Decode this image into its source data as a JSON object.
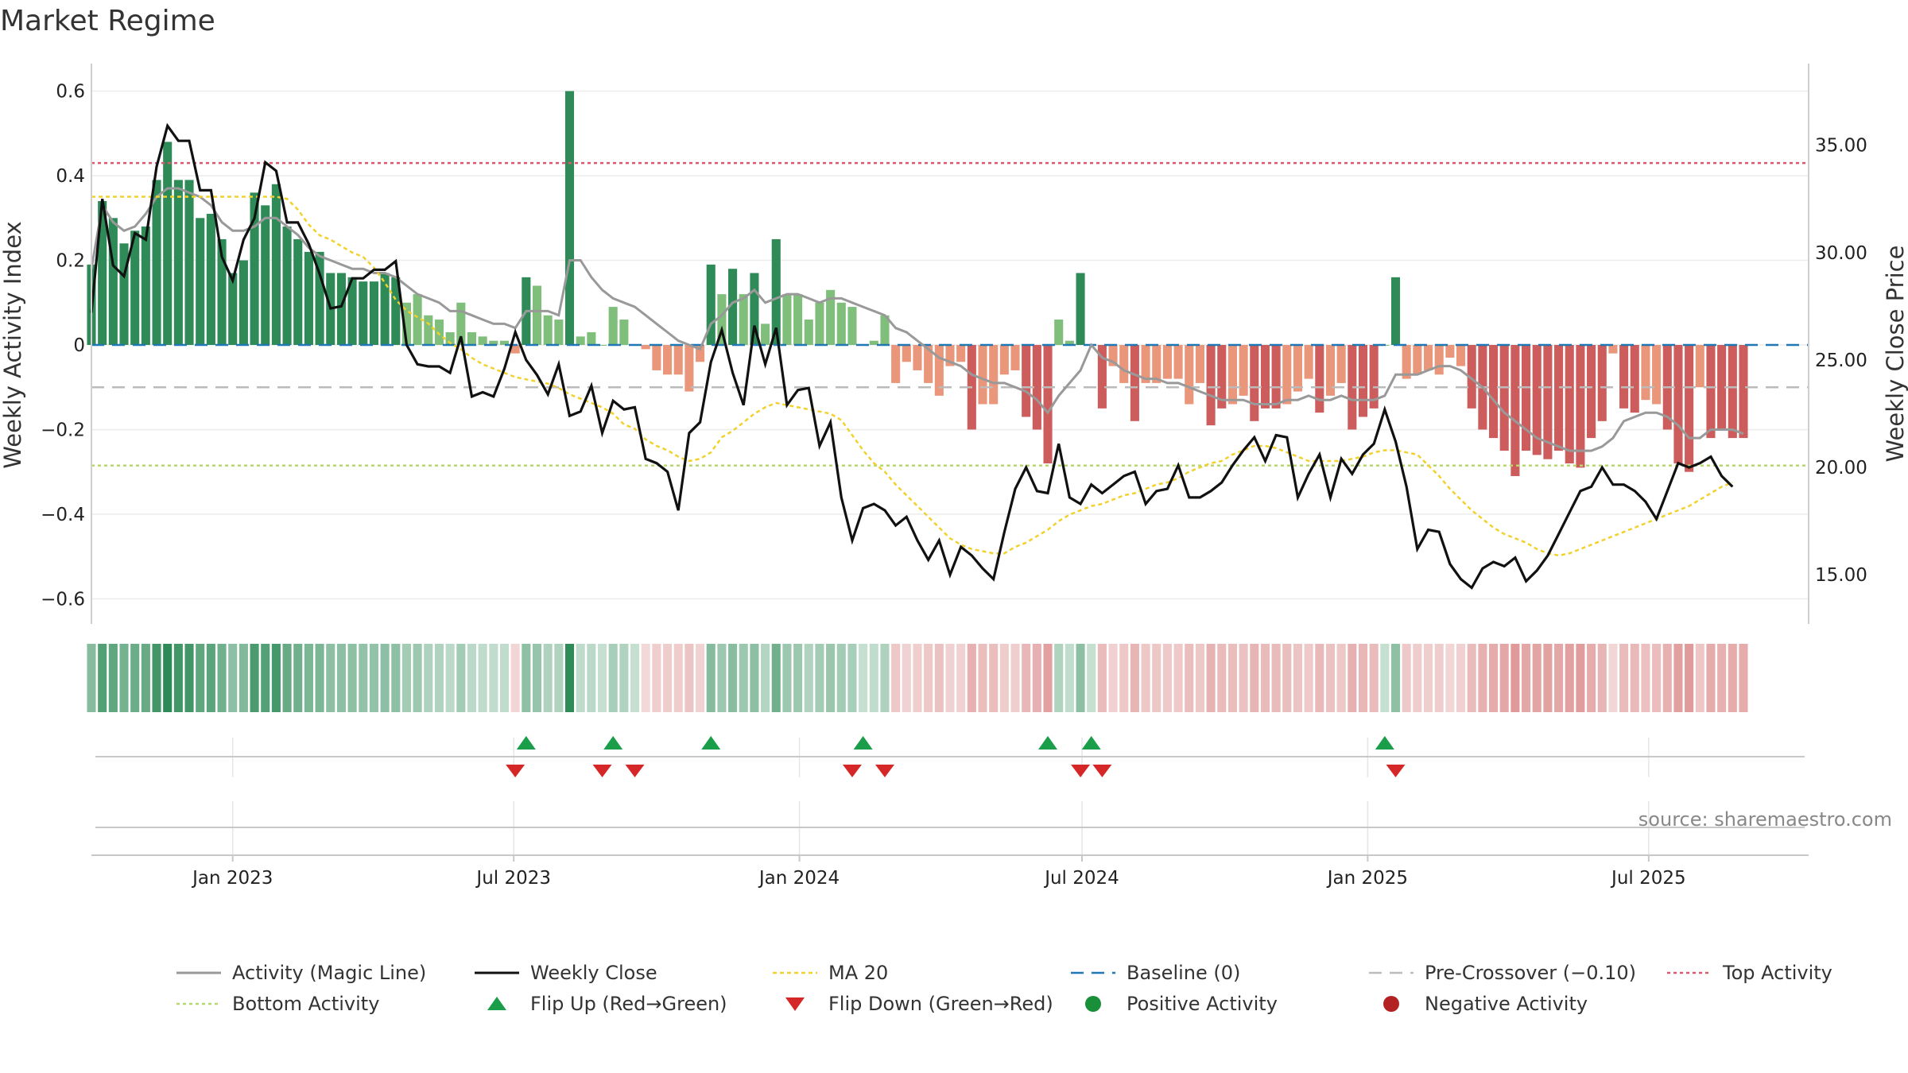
{
  "title": "Market Regime",
  "source": "source: sharemaestro.com",
  "colors": {
    "strong_green": "#2e8b57",
    "light_green": "#7fbf7b",
    "strong_red": "#cd5c5c",
    "light_red": "#e9967a",
    "magic_line": "#999999",
    "close": "#111111",
    "ma20": "#f2d12e",
    "baseline": "#1f77b4",
    "pre_crossover": "#bbbbbb",
    "top_activity": "#e0566f",
    "bottom_activity": "#b5d96b",
    "flip_up": "#1a9e4a",
    "flip_down": "#d62728",
    "positive": "#1a8f3a",
    "negative": "#b22222"
  },
  "chart_data": {
    "type": "bar",
    "title": "Market Regime",
    "x_start": "2022-10-02",
    "x_step_days": 7,
    "x_end": "2025-10-12",
    "ylabel": "Weekly Activity Index",
    "y2label": "Weekly Close Price",
    "ylim": [
      -0.65,
      0.65
    ],
    "y2lim": [
      12.9,
      38.5
    ],
    "yticks": [
      0.6,
      0.4,
      0.2,
      0,
      -0.2,
      -0.4,
      -0.6
    ],
    "ytick_labels": [
      "0.6",
      "0.4",
      "0.2",
      "0",
      "−0.2",
      "−0.4",
      "−0.6"
    ],
    "y2ticks": [
      35,
      30,
      25,
      20,
      15
    ],
    "y2tick_labels": [
      "35.00",
      "30.00",
      "25.00",
      "20.00",
      "15.00"
    ],
    "xtick_dates": [
      "2023-01-01",
      "2023-07-01",
      "2024-01-01",
      "2024-07-01",
      "2025-01-01",
      "2025-07-01"
    ],
    "xtick_labels": [
      "Jan 2023",
      "Jul 2023",
      "Jan 2024",
      "Jul 2024",
      "Jan 2025",
      "Jul 2025"
    ],
    "reference_lines": {
      "baseline": 0,
      "pre_crossover": -0.1,
      "top_activity": 0.43,
      "bottom_activity": -0.285
    },
    "series": [
      {
        "name": "Activity",
        "type": "bar",
        "values": [
          0.19,
          0.34,
          0.3,
          0.24,
          0.27,
          0.28,
          0.39,
          0.48,
          0.39,
          0.39,
          0.3,
          0.31,
          0.25,
          0.17,
          0.2,
          0.36,
          0.33,
          0.38,
          0.28,
          0.25,
          0.22,
          0.22,
          0.17,
          0.17,
          0.16,
          0.15,
          0.15,
          0.17,
          0.16,
          0.1,
          0.12,
          0.07,
          0.06,
          0.03,
          0.1,
          0.03,
          0.02,
          0.01,
          0.01,
          -0.02,
          0.16,
          0.14,
          0.07,
          0.06,
          0.6,
          0.02,
          0.03,
          0.0,
          0.09,
          0.06,
          0.0,
          -0.01,
          -0.06,
          -0.07,
          -0.07,
          -0.11,
          -0.04,
          0.19,
          0.12,
          0.18,
          0.12,
          0.17,
          0.05,
          0.25,
          0.12,
          0.12,
          0.06,
          0.1,
          0.13,
          0.1,
          0.09,
          0.0,
          0.01,
          0.07,
          -0.09,
          -0.04,
          -0.06,
          -0.09,
          -0.12,
          -0.05,
          -0.04,
          -0.2,
          -0.14,
          -0.14,
          -0.07,
          -0.06,
          -0.17,
          -0.2,
          -0.28,
          0.06,
          0.01,
          0.17,
          0.0,
          -0.15,
          -0.05,
          -0.09,
          -0.18,
          -0.09,
          -0.09,
          -0.08,
          -0.08,
          -0.14,
          -0.09,
          -0.19,
          -0.15,
          -0.14,
          -0.12,
          -0.18,
          -0.15,
          -0.15,
          -0.14,
          -0.11,
          -0.08,
          -0.16,
          -0.12,
          -0.09,
          -0.2,
          -0.17,
          -0.15,
          0.0,
          0.16,
          -0.08,
          -0.07,
          -0.06,
          -0.07,
          -0.03,
          -0.05,
          -0.15,
          -0.2,
          -0.22,
          -0.25,
          -0.31,
          -0.25,
          -0.26,
          -0.27,
          -0.25,
          -0.28,
          -0.29,
          -0.22,
          -0.18,
          -0.02,
          -0.15,
          -0.16,
          -0.13,
          -0.14,
          -0.2,
          -0.28,
          -0.3,
          -0.1,
          -0.22,
          -0.2,
          -0.22,
          -0.22
        ]
      },
      {
        "name": "Activity (Magic Line)",
        "type": "line",
        "values": [
          0.18,
          0.33,
          0.29,
          0.27,
          0.28,
          0.31,
          0.35,
          0.37,
          0.37,
          0.36,
          0.35,
          0.33,
          0.29,
          0.27,
          0.27,
          0.28,
          0.3,
          0.3,
          0.28,
          0.26,
          0.23,
          0.21,
          0.2,
          0.19,
          0.18,
          0.18,
          0.17,
          0.17,
          0.16,
          0.14,
          0.12,
          0.11,
          0.1,
          0.08,
          0.08,
          0.07,
          0.06,
          0.05,
          0.05,
          0.04,
          0.08,
          0.08,
          0.08,
          0.07,
          0.2,
          0.2,
          0.16,
          0.13,
          0.11,
          0.1,
          0.09,
          0.07,
          0.05,
          0.03,
          0.01,
          0.0,
          -0.01,
          0.05,
          0.07,
          0.1,
          0.11,
          0.13,
          0.1,
          0.11,
          0.12,
          0.12,
          0.11,
          0.1,
          0.11,
          0.11,
          0.1,
          0.09,
          0.08,
          0.07,
          0.04,
          0.03,
          0.01,
          -0.01,
          -0.03,
          -0.04,
          -0.05,
          -0.07,
          -0.08,
          -0.09,
          -0.09,
          -0.1,
          -0.11,
          -0.13,
          -0.16,
          -0.12,
          -0.09,
          -0.06,
          0.0,
          -0.03,
          -0.04,
          -0.06,
          -0.07,
          -0.08,
          -0.08,
          -0.09,
          -0.09,
          -0.1,
          -0.11,
          -0.12,
          -0.13,
          -0.13,
          -0.13,
          -0.14,
          -0.14,
          -0.14,
          -0.13,
          -0.13,
          -0.12,
          -0.13,
          -0.13,
          -0.12,
          -0.13,
          -0.13,
          -0.13,
          -0.12,
          -0.07,
          -0.07,
          -0.07,
          -0.06,
          -0.05,
          -0.05,
          -0.06,
          -0.08,
          -0.1,
          -0.13,
          -0.16,
          -0.18,
          -0.2,
          -0.22,
          -0.23,
          -0.24,
          -0.25,
          -0.25,
          -0.25,
          -0.24,
          -0.22,
          -0.18,
          -0.17,
          -0.16,
          -0.16,
          -0.17,
          -0.19,
          -0.22,
          -0.22,
          -0.2,
          -0.2,
          -0.2,
          -0.21
        ]
      },
      {
        "name": "Weekly Close",
        "type": "line",
        "axis": "y2",
        "values": [
          27.2,
          32.5,
          29.4,
          28.9,
          30.9,
          30.6,
          34.0,
          35.9,
          35.2,
          35.2,
          32.9,
          32.9,
          29.8,
          28.7,
          30.6,
          31.6,
          34.2,
          33.8,
          31.4,
          31.4,
          30.4,
          29.0,
          27.4,
          27.5,
          28.8,
          28.8,
          29.2,
          29.2,
          29.6,
          25.7,
          24.8,
          24.7,
          24.7,
          24.4,
          26.1,
          23.3,
          23.5,
          23.3,
          24.6,
          26.3,
          25.0,
          24.3,
          23.4,
          24.8,
          22.4,
          22.6,
          23.8,
          21.6,
          23.1,
          22.7,
          22.8,
          20.4,
          20.2,
          19.8,
          18.0,
          21.6,
          22.1,
          24.9,
          26.4,
          24.4,
          22.9,
          26.6,
          24.8,
          26.5,
          22.9,
          23.6,
          23.7,
          21.0,
          22.1,
          18.6,
          16.6,
          18.1,
          18.3,
          18.0,
          17.3,
          17.7,
          16.6,
          15.7,
          16.6,
          15.0,
          16.3,
          15.9,
          15.3,
          14.8,
          17.0,
          19.0,
          20.0,
          18.9,
          18.8,
          21.1,
          18.6,
          18.3,
          19.2,
          18.8,
          19.2,
          19.6,
          19.8,
          18.3,
          18.9,
          19.0,
          20.1,
          18.6,
          18.6,
          18.9,
          19.3,
          20.1,
          20.8,
          21.4,
          20.3,
          21.5,
          21.4,
          18.6,
          19.7,
          20.6,
          18.6,
          20.4,
          19.7,
          20.6,
          21.1,
          22.7,
          21.2,
          19.1,
          16.2,
          17.1,
          17.0,
          15.5,
          14.8,
          14.4,
          15.3,
          15.6,
          15.4,
          15.8,
          14.7,
          15.2,
          15.9,
          16.9,
          17.9,
          18.9,
          19.1,
          20.0,
          19.2,
          19.2,
          18.9,
          18.4,
          17.6,
          18.9,
          20.2,
          20.0,
          20.2,
          20.5,
          19.6,
          19.1
        ]
      },
      {
        "name": "MA 20",
        "type": "line",
        "axis": "y2",
        "values": [
          32.6,
          32.6,
          32.6,
          32.6,
          32.6,
          32.6,
          32.6,
          32.6,
          32.6,
          32.6,
          32.6,
          32.6,
          32.6,
          32.6,
          32.6,
          32.6,
          32.6,
          32.6,
          32.5,
          32.0,
          31.3,
          30.8,
          30.6,
          30.3,
          30.0,
          29.8,
          29.3,
          28.6,
          27.8,
          27.3,
          27.0,
          26.7,
          26.2,
          25.8,
          25.5,
          25.1,
          24.8,
          24.6,
          24.4,
          24.2,
          24.1,
          24.0,
          23.9,
          23.7,
          23.4,
          23.2,
          23.0,
          22.8,
          22.5,
          22.0,
          21.8,
          21.3,
          21.0,
          20.8,
          20.5,
          20.3,
          20.4,
          20.7,
          21.4,
          21.7,
          22.1,
          22.5,
          22.8,
          23.0,
          22.9,
          22.8,
          22.7,
          22.6,
          22.5,
          22.2,
          21.5,
          20.8,
          20.2,
          19.8,
          19.2,
          18.7,
          18.2,
          17.7,
          17.2,
          16.7,
          16.4,
          16.2,
          16.1,
          16.0,
          16.0,
          16.3,
          16.5,
          16.8,
          17.1,
          17.5,
          17.8,
          18.0,
          18.2,
          18.3,
          18.5,
          18.7,
          18.8,
          19.0,
          19.2,
          19.3,
          19.5,
          19.8,
          20.0,
          20.2,
          20.3,
          20.6,
          20.8,
          21.0,
          21.0,
          20.9,
          20.7,
          20.5,
          20.3,
          20.3,
          20.3,
          20.3,
          20.4,
          20.5,
          20.7,
          20.8,
          20.8,
          20.7,
          20.6,
          20.1,
          19.6,
          19.0,
          18.5,
          18.0,
          17.6,
          17.2,
          16.9,
          16.7,
          16.5,
          16.2,
          16.0,
          15.9,
          16.0,
          16.2,
          16.4,
          16.6,
          16.8,
          17.0,
          17.2,
          17.4,
          17.6,
          17.8,
          18.0,
          18.2,
          18.5,
          18.8,
          19.1,
          19.3
        ]
      }
    ],
    "flip_up_dates": [
      "2023-07-09",
      "2023-09-03",
      "2023-11-05",
      "2024-02-11",
      "2024-06-09",
      "2024-07-07",
      "2025-01-12"
    ],
    "flip_down_dates": [
      "2023-07-02",
      "2023-08-27",
      "2023-09-17",
      "2024-02-04",
      "2024-02-25",
      "2024-06-30",
      "2024-07-14",
      "2025-01-19"
    ]
  },
  "legend": [
    {
      "label": "Activity (Magic Line)",
      "icon": "gray-line-icon"
    },
    {
      "label": "Weekly Close",
      "icon": "black-line-icon"
    },
    {
      "label": "MA 20",
      "icon": "yellow-dotted-line-icon"
    },
    {
      "label": "Baseline (0)",
      "icon": "blue-dashed-line-icon"
    },
    {
      "label": "Pre-Crossover (−0.10)",
      "icon": "gray-dashed-line-icon"
    },
    {
      "label": "Top Activity",
      "icon": "red-dotted-line-icon"
    },
    {
      "label": "Bottom Activity",
      "icon": "green-dotted-line-icon"
    },
    {
      "label": "Flip Up (Red→Green)",
      "icon": "green-triangle-up-icon"
    },
    {
      "label": "Flip Down (Green→Red)",
      "icon": "red-triangle-down-icon"
    },
    {
      "label": "Positive Activity",
      "icon": "green-circle-icon"
    },
    {
      "label": "Negative Activity",
      "icon": "red-circle-icon"
    }
  ]
}
